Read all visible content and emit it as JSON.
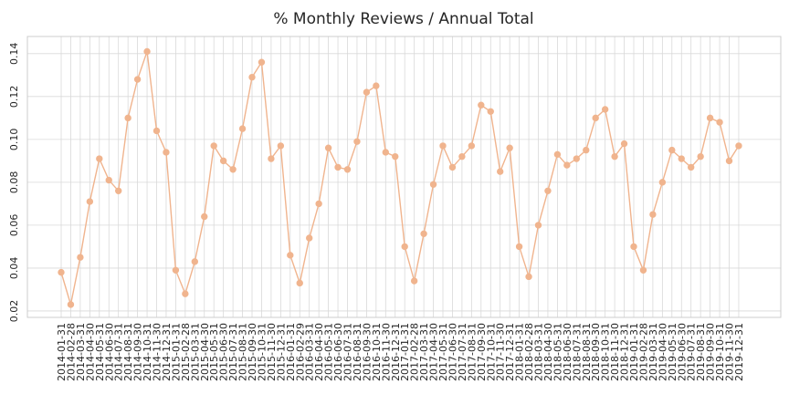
{
  "chart_data": {
    "type": "line",
    "title": "% Monthly Reviews / Annual Total",
    "xlabel": "",
    "ylabel": "",
    "ylim": [
      0.017,
      0.148
    ],
    "yticks": [
      0.02,
      0.04,
      0.06,
      0.08,
      0.1,
      0.12,
      0.14
    ],
    "ytick_labels": [
      "0.02",
      "0.04",
      "0.06",
      "0.08",
      "0.10",
      "0.12",
      "0.14"
    ],
    "grid": true,
    "color": "#f0b48e",
    "x": [
      "2014-01-31",
      "2014-02-28",
      "2014-03-31",
      "2014-04-30",
      "2014-05-31",
      "2014-06-30",
      "2014-07-31",
      "2014-08-31",
      "2014-09-30",
      "2014-10-31",
      "2014-11-30",
      "2014-12-31",
      "2015-01-31",
      "2015-02-28",
      "2015-03-31",
      "2015-04-30",
      "2015-05-31",
      "2015-06-30",
      "2015-07-31",
      "2015-08-31",
      "2015-09-30",
      "2015-10-31",
      "2015-11-30",
      "2015-12-31",
      "2016-01-31",
      "2016-02-29",
      "2016-03-31",
      "2016-04-30",
      "2016-05-31",
      "2016-06-30",
      "2016-07-31",
      "2016-08-31",
      "2016-09-30",
      "2016-10-31",
      "2016-11-30",
      "2016-12-31",
      "2017-01-31",
      "2017-02-28",
      "2017-03-31",
      "2017-04-30",
      "2017-05-31",
      "2017-06-30",
      "2017-07-31",
      "2017-08-31",
      "2017-09-30",
      "2017-10-31",
      "2017-11-30",
      "2017-12-31",
      "2018-01-31",
      "2018-02-28",
      "2018-03-31",
      "2018-04-30",
      "2018-05-31",
      "2018-06-30",
      "2018-07-31",
      "2018-08-31",
      "2018-09-30",
      "2018-10-31",
      "2018-11-30",
      "2018-12-31",
      "2019-01-31",
      "2019-02-28",
      "2019-03-31",
      "2019-04-30",
      "2019-05-31",
      "2019-06-30",
      "2019-07-31",
      "2019-08-31",
      "2019-09-30",
      "2019-10-31",
      "2019-11-30",
      "2019-12-31"
    ],
    "values": [
      0.038,
      0.023,
      0.045,
      0.071,
      0.091,
      0.081,
      0.076,
      0.11,
      0.128,
      0.141,
      0.104,
      0.094,
      0.039,
      0.028,
      0.043,
      0.064,
      0.097,
      0.09,
      0.086,
      0.105,
      0.129,
      0.136,
      0.091,
      0.097,
      0.046,
      0.033,
      0.054,
      0.07,
      0.096,
      0.087,
      0.086,
      0.099,
      0.122,
      0.125,
      0.094,
      0.092,
      0.05,
      0.034,
      0.056,
      0.079,
      0.097,
      0.087,
      0.092,
      0.097,
      0.116,
      0.113,
      0.085,
      0.096,
      0.05,
      0.036,
      0.06,
      0.076,
      0.093,
      0.088,
      0.091,
      0.095,
      0.11,
      0.114,
      0.092,
      0.098,
      0.05,
      0.039,
      0.065,
      0.08,
      0.095,
      0.091,
      0.087,
      0.092,
      0.11,
      0.108,
      0.09,
      0.097
    ]
  }
}
